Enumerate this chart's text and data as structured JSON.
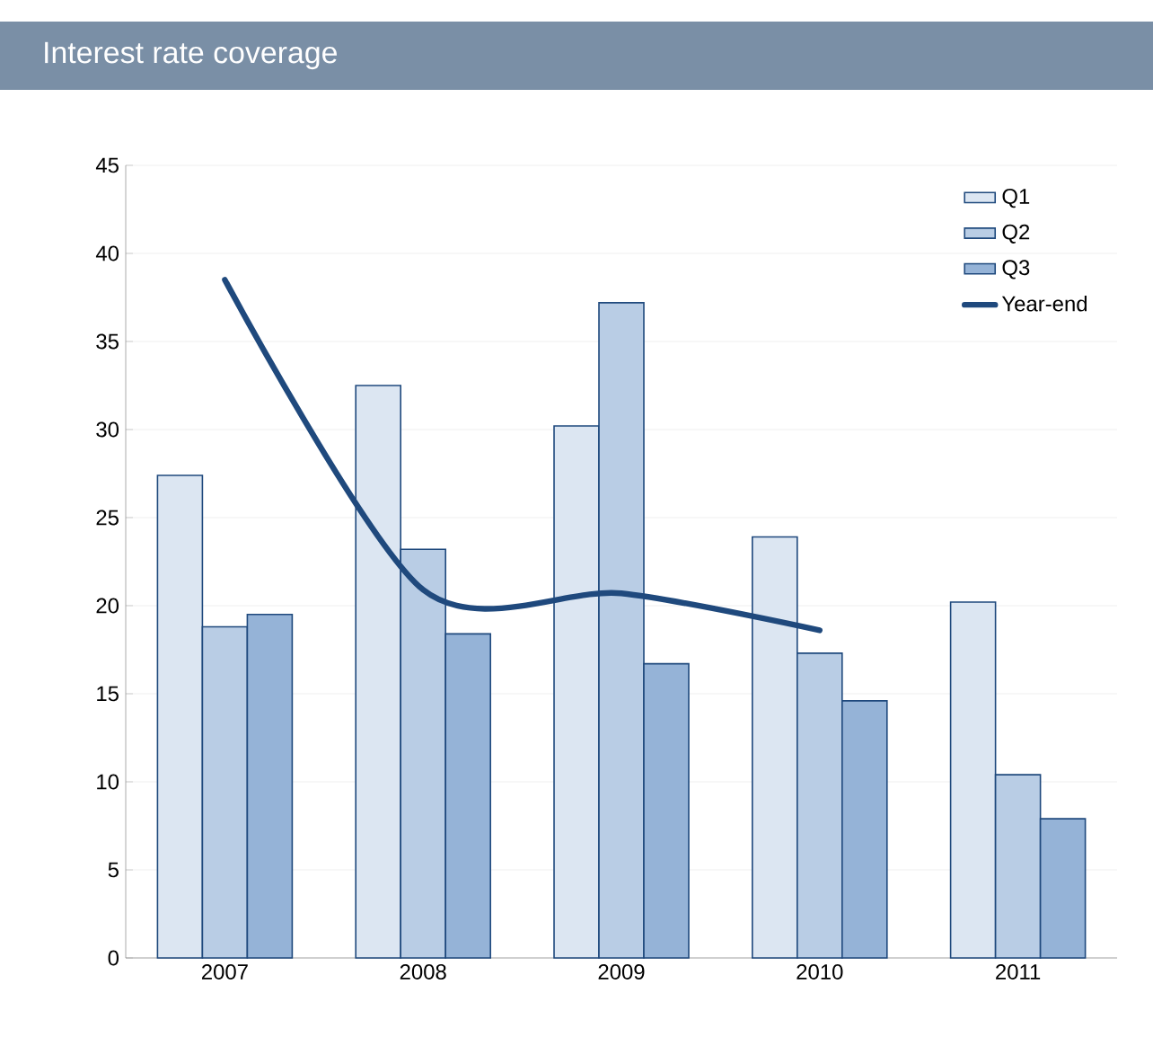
{
  "chart_data": {
    "type": "bar",
    "title": "Interest rate coverage",
    "categories": [
      "2007",
      "2008",
      "2009",
      "2010",
      "2011"
    ],
    "series": [
      {
        "name": "Q1",
        "color": "#dce6f2",
        "values": [
          27.4,
          32.5,
          30.2,
          23.9,
          20.2
        ]
      },
      {
        "name": "Q2",
        "color": "#b9cde5",
        "values": [
          18.8,
          23.2,
          37.2,
          17.3,
          10.4
        ]
      },
      {
        "name": "Q3",
        "color": "#95b3d7",
        "values": [
          19.5,
          18.4,
          16.7,
          14.6,
          7.9
        ]
      },
      {
        "name": "Year-end",
        "type": "line",
        "color": "#1f497d",
        "values": [
          38.5,
          20.9,
          20.7,
          18.6,
          null
        ],
        "marker": "none",
        "line_style": "solid"
      }
    ],
    "ylim": [
      0,
      45
    ],
    "yticks": [
      0,
      5,
      10,
      15,
      20,
      25,
      30,
      35,
      40,
      45
    ],
    "grid": "y",
    "legend": "top right"
  }
}
